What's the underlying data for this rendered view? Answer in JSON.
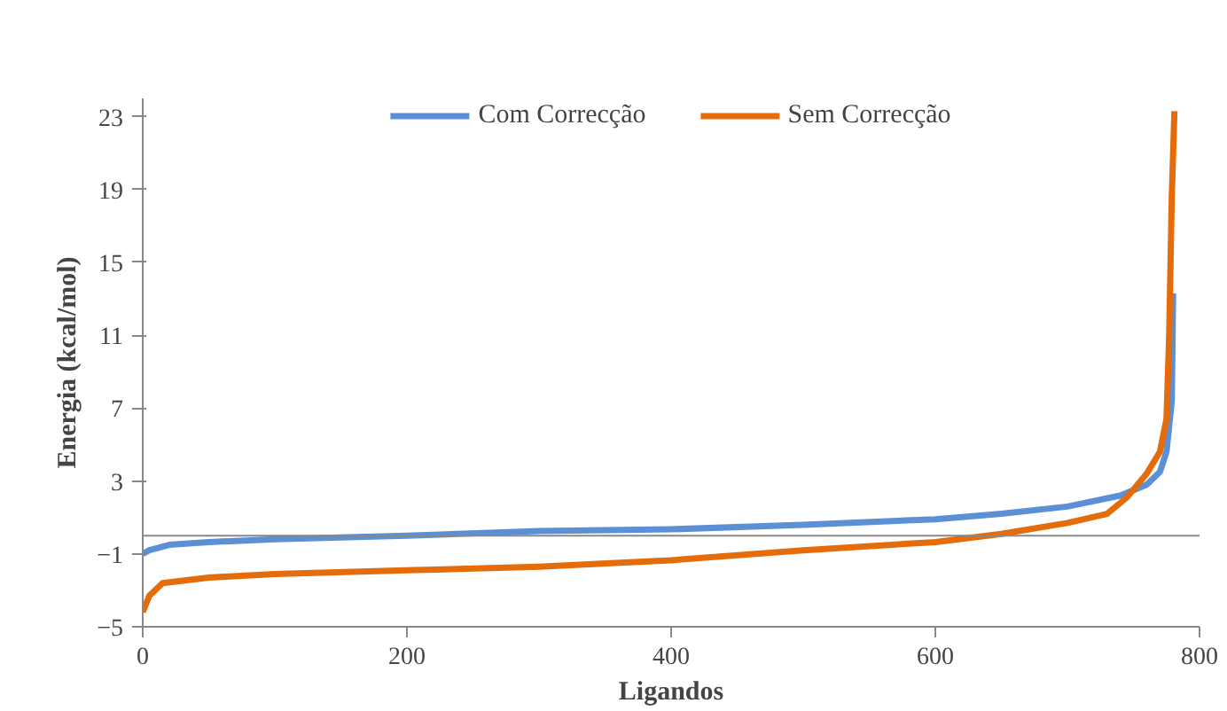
{
  "chart_data": {
    "type": "line",
    "xlabel": "Ligandos",
    "ylabel": "Energia (kcal/mol)",
    "xlim": [
      0,
      800
    ],
    "xticks": [
      0,
      200,
      400,
      600,
      800
    ],
    "ylim": [
      -5,
      24
    ],
    "yticks": [
      -5,
      -1,
      3,
      7,
      11,
      15,
      19,
      23
    ],
    "grid": false,
    "legend": "top",
    "marker": "none",
    "line_style": "solid",
    "series": [
      {
        "name": "Com Correcção",
        "color": "#5b8fd6",
        "x": [
          0,
          5,
          20,
          50,
          100,
          200,
          300,
          400,
          500,
          600,
          650,
          700,
          740,
          760,
          770,
          775,
          779,
          780
        ],
        "values": [
          -1.0,
          -0.8,
          -0.5,
          -0.35,
          -0.2,
          0.0,
          0.25,
          0.35,
          0.6,
          0.9,
          1.2,
          1.6,
          2.2,
          2.8,
          3.5,
          4.6,
          7.4,
          13.3
        ]
      },
      {
        "name": "Sem Correcção",
        "color": "#e46c0a",
        "x": [
          0,
          5,
          15,
          50,
          100,
          200,
          300,
          358,
          400,
          500,
          600,
          650,
          700,
          730,
          745,
          760,
          770,
          775,
          777,
          779,
          781
        ],
        "values": [
          -4.2,
          -3.3,
          -2.6,
          -2.3,
          -2.1,
          -1.9,
          -1.7,
          -1.5,
          -1.35,
          -0.8,
          -0.35,
          0.1,
          0.7,
          1.2,
          2.1,
          3.4,
          4.6,
          6.4,
          10.9,
          18.6,
          23.3
        ]
      }
    ]
  }
}
